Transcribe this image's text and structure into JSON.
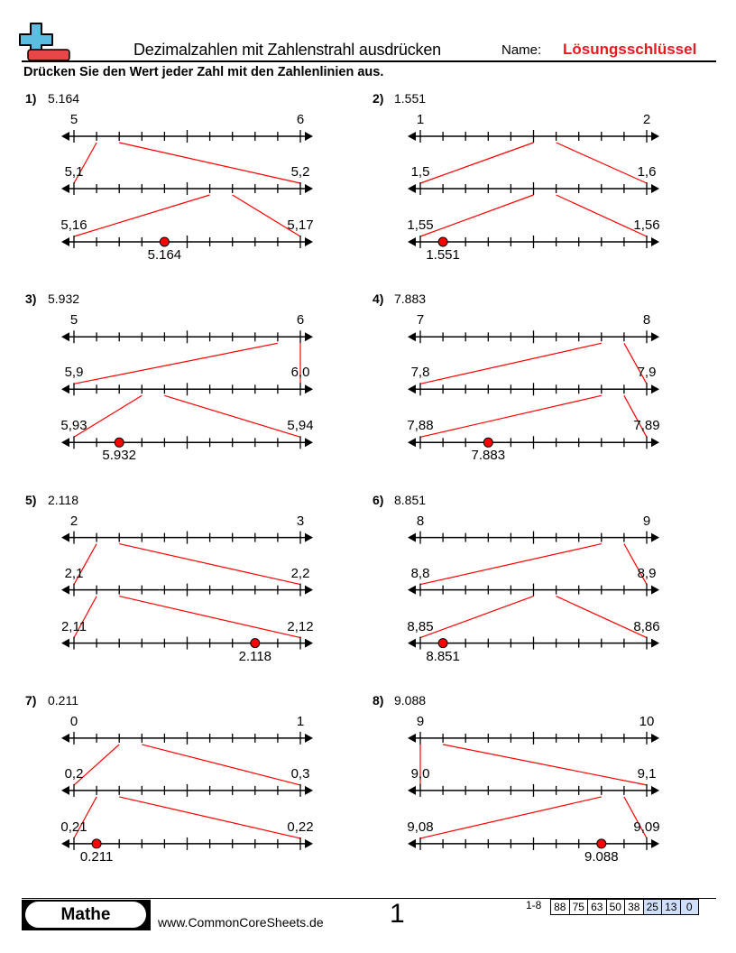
{
  "header": {
    "title": "Dezimalzahlen mit Zahlenstrahl ausdrücken",
    "name_label": "Name:",
    "answer_key": "Lösungsschlüssel",
    "instructions": "Drücken Sie den Wert jeder Zahl mit den Zahlenlinien aus.",
    "logo_colors": {
      "plus": "#5bbde0",
      "minus": "#e8474a"
    }
  },
  "accent_color": "#ff0000",
  "problems": [
    {
      "label": "1)",
      "value": "5.164",
      "lines": [
        [
          "5",
          "6"
        ],
        [
          "5,1",
          "5,2"
        ],
        [
          "5,16",
          "5,17"
        ]
      ],
      "zoom_ticks": [
        1,
        6
      ],
      "point_tick": 4
    },
    {
      "label": "2)",
      "value": "1.551",
      "lines": [
        [
          "1",
          "2"
        ],
        [
          "1,5",
          "1,6"
        ],
        [
          "1,55",
          "1,56"
        ]
      ],
      "zoom_ticks": [
        5,
        5
      ],
      "point_tick": 1
    },
    {
      "label": "3)",
      "value": "5.932",
      "lines": [
        [
          "5",
          "6"
        ],
        [
          "5,9",
          "6,0"
        ],
        [
          "5,93",
          "5,94"
        ]
      ],
      "zoom_ticks": [
        9,
        3
      ],
      "point_tick": 2
    },
    {
      "label": "4)",
      "value": "7.883",
      "lines": [
        [
          "7",
          "8"
        ],
        [
          "7,8",
          "7,9"
        ],
        [
          "7,88",
          "7,89"
        ]
      ],
      "zoom_ticks": [
        8,
        8
      ],
      "point_tick": 3
    },
    {
      "label": "5)",
      "value": "2.118",
      "lines": [
        [
          "2",
          "3"
        ],
        [
          "2,1",
          "2,2"
        ],
        [
          "2,11",
          "2,12"
        ]
      ],
      "zoom_ticks": [
        1,
        1
      ],
      "point_tick": 8
    },
    {
      "label": "6)",
      "value": "8.851",
      "lines": [
        [
          "8",
          "9"
        ],
        [
          "8,8",
          "8,9"
        ],
        [
          "8,85",
          "8,86"
        ]
      ],
      "zoom_ticks": [
        8,
        5
      ],
      "point_tick": 1
    },
    {
      "label": "7)",
      "value": "0.211",
      "lines": [
        [
          "0",
          "1"
        ],
        [
          "0,2",
          "0,3"
        ],
        [
          "0,21",
          "0,22"
        ]
      ],
      "zoom_ticks": [
        2,
        1
      ],
      "point_tick": 1
    },
    {
      "label": "8)",
      "value": "9.088",
      "lines": [
        [
          "9",
          "10"
        ],
        [
          "9,0",
          "9,1"
        ],
        [
          "9,08",
          "9,09"
        ]
      ],
      "zoom_ticks": [
        0,
        8
      ],
      "point_tick": 8
    }
  ],
  "footer": {
    "brand": "Mathe",
    "site": "www.CommonCoreSheets.de",
    "page": "1",
    "range": "1-8",
    "scores": [
      "88",
      "75",
      "63",
      "50",
      "38",
      "25",
      "13",
      "0"
    ],
    "highlighted_scores": [
      "25",
      "13",
      "0"
    ]
  }
}
